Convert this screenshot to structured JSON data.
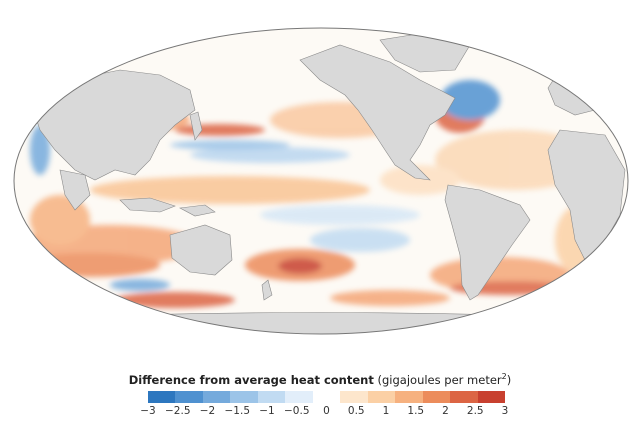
{
  "legend": {
    "title_bold": "Difference from average heat content",
    "title_unit": "(gigajoules per meter",
    "title_sup": "2",
    "title_close": ")",
    "ticks": [
      "−3",
      "−2.5",
      "−2",
      "−1.5",
      "−1",
      "−0.5",
      "0",
      "0.5",
      "1",
      "1.5",
      "2",
      "2.5",
      "3"
    ],
    "range": [
      -3,
      3
    ],
    "colors": [
      "#2d77bf",
      "#4f91d0",
      "#75aadc",
      "#9cc4e8",
      "#c1dbf2",
      "#e2eefa",
      "#ffffff",
      "#fde6cc",
      "#fbd0a5",
      "#f6b17f",
      "#ec8c5b",
      "#dc6544",
      "#c8402f"
    ]
  },
  "map": {
    "projection": "Mollweide",
    "land_color": "#d9d9d9",
    "ocean_background": "#ffffff",
    "border_color": "#888888"
  }
}
